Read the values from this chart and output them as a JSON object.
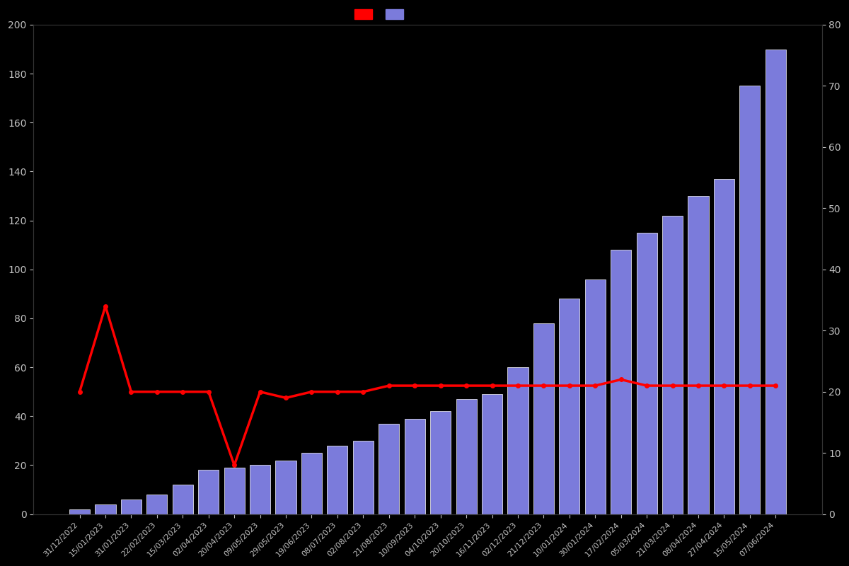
{
  "dates": [
    "31/12/2022",
    "15/01/2023",
    "31/01/2023",
    "22/02/2023",
    "15/03/2023",
    "02/04/2023",
    "20/04/2023",
    "09/05/2023",
    "29/05/2023",
    "19/06/2023",
    "08/07/2023",
    "02/08/2023",
    "21/08/2023",
    "10/09/2023",
    "04/10/2023",
    "20/10/2023",
    "16/11/2023",
    "02/12/2023",
    "21/12/2023",
    "10/01/2024",
    "30/01/2024",
    "17/02/2024",
    "05/03/2024",
    "21/03/2024",
    "08/04/2024",
    "27/04/2024",
    "15/05/2024",
    "07/06/2024"
  ],
  "bars": [
    2,
    4,
    6,
    8,
    12,
    18,
    19,
    20,
    22,
    25,
    28,
    30,
    37,
    39,
    42,
    47,
    49,
    60,
    78,
    88,
    96,
    108,
    115,
    122,
    130,
    137,
    175,
    190
  ],
  "line_right_axis": [
    20,
    34,
    20,
    20,
    20,
    20,
    8,
    20,
    19,
    20,
    20,
    20,
    21,
    21,
    21,
    21,
    21,
    21,
    21,
    21,
    21,
    22,
    21,
    21,
    21,
    21,
    21,
    21
  ],
  "bar_color": "#7b7bdb",
  "bar_edgecolor": "#ffffff",
  "line_color": "#ff0000",
  "background_color": "#000000",
  "text_color": "#c0c0c0",
  "left_ylim": [
    0,
    200
  ],
  "right_ylim": [
    0,
    80
  ],
  "left_yticks": [
    0,
    20,
    40,
    60,
    80,
    100,
    120,
    140,
    160,
    180,
    200
  ],
  "right_yticks": [
    0,
    10,
    20,
    30,
    40,
    50,
    60,
    70,
    80
  ]
}
